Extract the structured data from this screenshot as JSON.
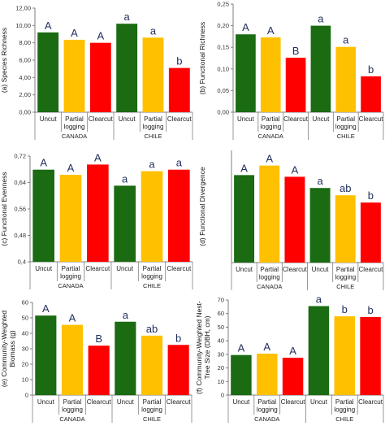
{
  "colors": {
    "uncut": "#1a6b12",
    "partial": "#ffc000",
    "clearcut": "#ff0000",
    "axis": "#7f7f7f",
    "letter": "#1f2f5c"
  },
  "chart_data": [
    {
      "type": "bar",
      "ylabel": "(a) Species Richness",
      "ylim": [
        0,
        12
      ],
      "yticks": [
        "0,00",
        "2,00",
        "4,00",
        "6,00",
        "8,00",
        "10,00",
        "12,00"
      ],
      "categories": [
        "Uncut",
        "Partial logging",
        "Clearcut",
        "Uncut",
        "Partial logging",
        "Clearcut"
      ],
      "groups": [
        "CANADA",
        "CHILE"
      ],
      "values": [
        9.2,
        8.35,
        8.0,
        10.2,
        8.6,
        5.1
      ],
      "letters": [
        "A",
        "A",
        "A",
        "a",
        "a",
        "b"
      ]
    },
    {
      "type": "bar",
      "ylabel": "(b) Functional Richness",
      "ylim": [
        0,
        0.25
      ],
      "yticks": [
        "0,00",
        "0,05",
        "0,10",
        "0,15",
        "0,20",
        "0,25"
      ],
      "categories": [
        "Uncut",
        "Partial logging",
        "Clearcut",
        "Uncut",
        "Partial logging",
        "Clearcut"
      ],
      "groups": [
        "CANADA",
        "CHILE"
      ],
      "values": [
        0.18,
        0.173,
        0.126,
        0.2,
        0.151,
        0.083
      ],
      "letters": [
        "A",
        "A",
        "B",
        "a",
        "a",
        "b"
      ]
    },
    {
      "type": "bar",
      "ylabel": "(c) Functional Evenness",
      "ylim": [
        0.4,
        0.75
      ],
      "yticks": [
        "0,4",
        "0,48",
        "0,56",
        "0,64",
        "0,72"
      ],
      "categories": [
        "Uncut",
        "Partial logging",
        "Clearcut",
        "Uncut",
        "Partial logging",
        "Clearcut"
      ],
      "groups": [
        "CANADA",
        "CHILE"
      ],
      "values": [
        0.705,
        0.688,
        0.722,
        0.652,
        0.7,
        0.705
      ],
      "letters": [
        "A",
        "A",
        "A",
        "a",
        "a",
        "a"
      ]
    },
    {
      "type": "bar",
      "ylabel": "(d) Functional Divergence",
      "ylim": [
        0,
        1
      ],
      "yticks": [],
      "categories": [
        "Uncut",
        "Partial logging",
        "Clearcut",
        "Uncut",
        "Partial logging",
        "Clearcut"
      ],
      "groups": [
        "CANADA",
        "CHILE"
      ],
      "values": [
        0.78,
        0.865,
        0.765,
        0.665,
        0.6,
        0.535
      ],
      "letters": [
        "A",
        "A",
        "A",
        "a",
        "ab",
        "b"
      ]
    },
    {
      "type": "bar",
      "ylabel": "(e) Community-Weighted Biomass (g)",
      "ylim": [
        0,
        60
      ],
      "yticks": [
        "0",
        "10",
        "20",
        "30",
        "40",
        "50",
        "60"
      ],
      "categories": [
        "Uncut",
        "Partial logging",
        "Clearcut",
        "Uncut",
        "Partial logging",
        "Clearcut"
      ],
      "groups": [
        "CANADA",
        "CHILE"
      ],
      "values": [
        51.5,
        45.5,
        32.0,
        47.5,
        38.5,
        32.5
      ],
      "letters": [
        "A",
        "A",
        "B",
        "a",
        "ab",
        "b"
      ]
    },
    {
      "type": "bar",
      "ylabel": "(f) Community-Weighted Nest-Tree Size (DBH, cm)",
      "ylim": [
        0,
        70
      ],
      "yticks": [
        "0",
        "10",
        "20",
        "30",
        "40",
        "50",
        "60",
        "70"
      ],
      "categories": [
        "Uncut",
        "Partial logging",
        "Clearcut",
        "Uncut",
        "Partial logging",
        "Clearcut"
      ],
      "groups": [
        "CANADA",
        "CHILE"
      ],
      "values": [
        29.5,
        30.5,
        27.5,
        65.5,
        58.0,
        57.5
      ],
      "letters": [
        "A",
        "A",
        "A",
        "a",
        "b",
        "b"
      ]
    }
  ]
}
